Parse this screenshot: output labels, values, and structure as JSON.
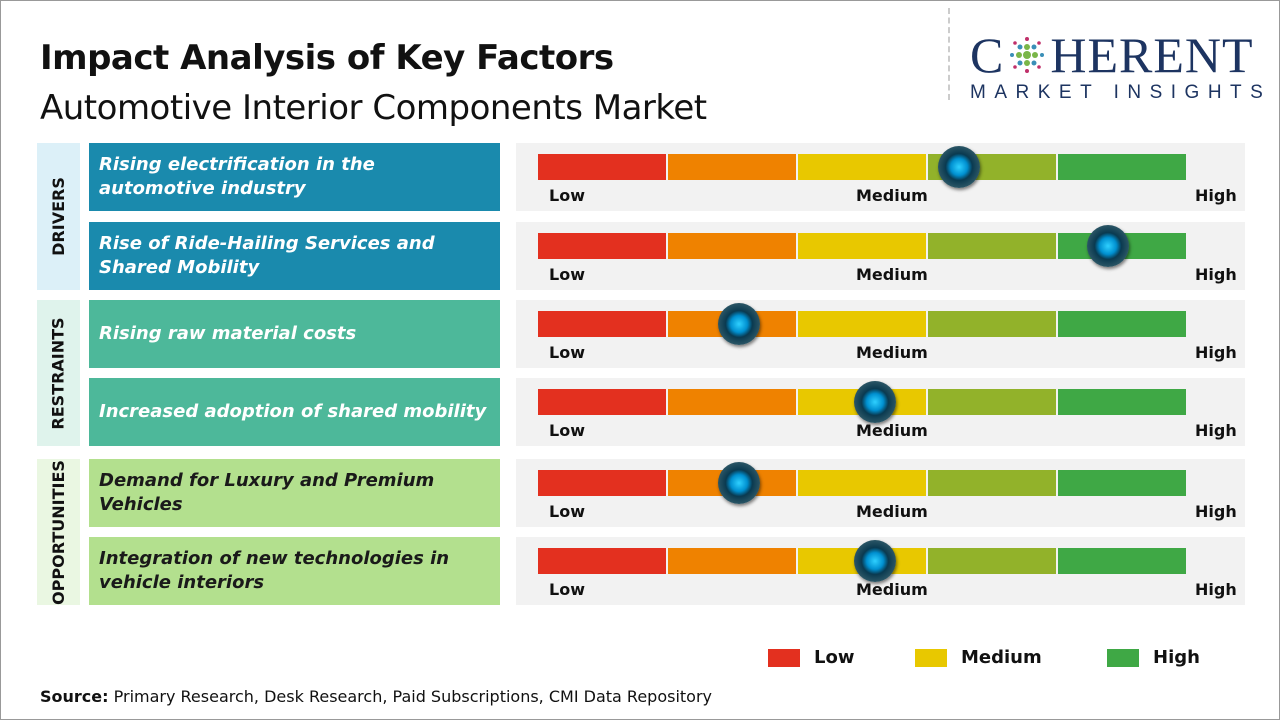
{
  "chart_data": {
    "type": "gauge",
    "title": "Impact Analysis of Key Factors",
    "subtitle": "Automotive Interior Components Market",
    "scale_labels": [
      "Low",
      "Medium",
      "High"
    ],
    "segment_colors": [
      "#e3301f",
      "#ef8200",
      "#e8c800",
      "#92b22a",
      "#3fa845"
    ],
    "categories": [
      {
        "name": "DRIVERS",
        "color": "#1a8aad",
        "bg": "#dcf0f8",
        "text_color": "#ffffff",
        "factors": [
          {
            "label": "Rising electrification in the automotive industry",
            "impact": 0.65
          },
          {
            "label": "Rise of Ride-Hailing Services and Shared Mobility",
            "impact": 0.88
          }
        ]
      },
      {
        "name": "RESTRAINTS",
        "color": "#4db89a",
        "bg": "#dff3ec",
        "text_color": "#ffffff",
        "factors": [
          {
            "label": "Rising raw material costs",
            "impact": 0.31
          },
          {
            "label": "Increased adoption of shared mobility",
            "impact": 0.52
          }
        ]
      },
      {
        "name": "OPPORTUNITIES",
        "color": "#b3e08e",
        "bg": "#eaf7e2",
        "text_color": "#1a1a1a",
        "factors": [
          {
            "label": "Demand for Luxury and Premium Vehicles",
            "impact": 0.31
          },
          {
            "label": "Integration of new technologies in vehicle interiors",
            "impact": 0.52
          }
        ]
      }
    ],
    "legend": [
      {
        "label": "Low",
        "color": "#e3301f"
      },
      {
        "label": "Medium",
        "color": "#e8c800"
      },
      {
        "label": "High",
        "color": "#3fa845"
      }
    ],
    "legend_placement": "bottom-right"
  },
  "logo": {
    "top": "COHERENT",
    "bottom": "MARKET INSIGHTS"
  },
  "source": {
    "label": "Source:",
    "text": " Primary Research, Desk Research, Paid Subscriptions, CMI Data Repository"
  }
}
